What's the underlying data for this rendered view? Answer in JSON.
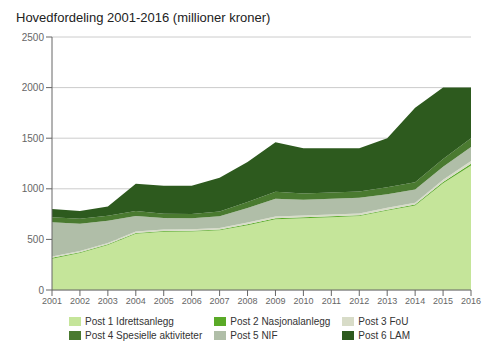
{
  "chart_data": {
    "type": "area",
    "title": "Hovedfordeling 2001-2016 (millioner kroner)",
    "stacked": true,
    "x": [
      2001,
      2002,
      2003,
      2004,
      2005,
      2006,
      2007,
      2008,
      2009,
      2010,
      2011,
      2012,
      2013,
      2014,
      2015,
      2016
    ],
    "series": [
      {
        "name": "Post 1 Idrettsanlegg",
        "color": "#c5e59a",
        "values": [
          310,
          365,
          445,
          555,
          575,
          578,
          590,
          640,
          700,
          710,
          720,
          730,
          785,
          835,
          1055,
          1230
        ]
      },
      {
        "name": "Post 2 Nasjonalanlegg",
        "color": "#5aaa28",
        "values": [
          8,
          8,
          8,
          8,
          8,
          8,
          8,
          9,
          9,
          9,
          9,
          9,
          9,
          9,
          12,
          18
        ]
      },
      {
        "name": "Post 3 FoU",
        "color": "#d8dcc8",
        "values": [
          12,
          12,
          12,
          14,
          14,
          14,
          15,
          17,
          18,
          18,
          18,
          18,
          18,
          18,
          22,
          26
        ]
      },
      {
        "name": "Post 5 NIF",
        "color": "#b0bea8",
        "values": [
          340,
          270,
          220,
          155,
          115,
          110,
          115,
          145,
          175,
          155,
          155,
          155,
          135,
          130,
          130,
          140
        ]
      },
      {
        "name": "Post 4 Spesielle aktiviteter",
        "color": "#4a7a30",
        "values": [
          48,
          48,
          48,
          48,
          42,
          42,
          48,
          58,
          68,
          62,
          62,
          62,
          68,
          72,
          76,
          86
        ]
      },
      {
        "name": "Post 6 LAM",
        "color": "#2d5a1e",
        "values": [
          82,
          77,
          92,
          270,
          276,
          278,
          334,
          396,
          490,
          446,
          436,
          426,
          485,
          736,
          705,
          500
        ]
      }
    ],
    "xlim": [
      2001,
      2016
    ],
    "xticks": [
      2001,
      2002,
      2003,
      2004,
      2005,
      2006,
      2007,
      2008,
      2009,
      2010,
      2011,
      2012,
      2013,
      2014,
      2015,
      2016
    ],
    "ylim": [
      0,
      2500
    ],
    "yticks": [
      0,
      500,
      1000,
      1500,
      2000,
      2500
    ],
    "grid": true,
    "legend": "bottom"
  }
}
